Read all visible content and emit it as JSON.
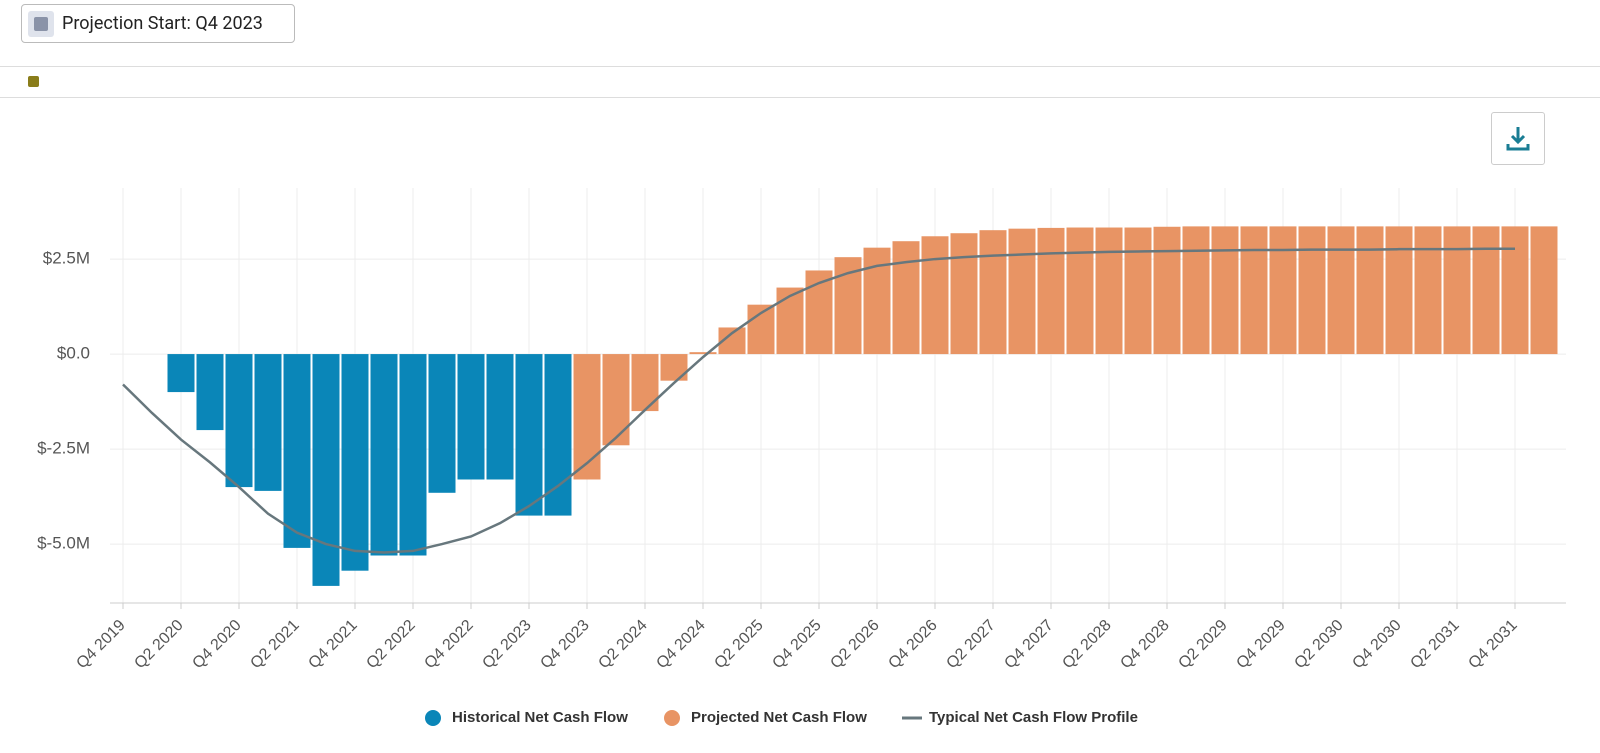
{
  "header": {
    "projection_button": "Projection Start: Q4 2023"
  },
  "chart_data": {
    "type": "bar",
    "categories": [
      "Q4 2019",
      null,
      "Q2 2020",
      null,
      "Q4 2020",
      null,
      "Q2 2021",
      null,
      "Q4 2021",
      null,
      "Q2 2022",
      null,
      "Q4 2022",
      null,
      "Q2 2023",
      null,
      "Q4 2023",
      null,
      "Q2 2024",
      null,
      "Q4 2024",
      null,
      "Q2 2025",
      null,
      "Q4 2025",
      null,
      "Q2 2026",
      null,
      "Q4 2026",
      null,
      "Q2 2027",
      null,
      "Q4 2027",
      null,
      "Q2 2028",
      null,
      "Q4 2028",
      null,
      "Q2 2029",
      null,
      "Q4 2029",
      null,
      "Q2 2030",
      null,
      "Q4 2030",
      null,
      "Q2 2031",
      null,
      "Q4 2031",
      null
    ],
    "series": [
      {
        "name": "Historical Net Cash Flow",
        "color": "#0a86b8",
        "kind": "bar",
        "values": [
          null,
          null,
          -1000000,
          -2000000,
          -3500000,
          -3600000,
          -5100000,
          -6100000,
          -5700000,
          -5300000,
          -5300000,
          -3650000,
          -3300000,
          -3300000,
          -4250000,
          -4250000,
          null,
          null,
          null,
          null,
          null,
          null,
          null,
          null,
          null,
          null,
          null,
          null,
          null,
          null,
          null,
          null,
          null,
          null,
          null,
          null,
          null,
          null,
          null,
          null,
          null,
          null,
          null,
          null,
          null,
          null,
          null,
          null,
          null,
          null
        ]
      },
      {
        "name": "Projected Net Cash Flow",
        "color": "#e89464",
        "kind": "bar",
        "values": [
          null,
          null,
          null,
          null,
          null,
          null,
          null,
          null,
          null,
          null,
          null,
          null,
          null,
          null,
          null,
          null,
          -3300000,
          -2400000,
          -1500000,
          -700000,
          50000,
          700000,
          1300000,
          1750000,
          2200000,
          2550000,
          2800000,
          2970000,
          3100000,
          3180000,
          3260000,
          3300000,
          3320000,
          3330000,
          3330000,
          3330000,
          3350000,
          3360000,
          3360000,
          3360000,
          3360000,
          3360000,
          3360000,
          3360000,
          3360000,
          3360000,
          3360000,
          3360000,
          3360000,
          3360000
        ]
      },
      {
        "name": "Typical Net Cash Flow Profile",
        "color": "#67777d",
        "kind": "line",
        "values": [
          -800000,
          -1550000,
          -2250000,
          -2850000,
          -3500000,
          -4200000,
          -4700000,
          -5000000,
          -5180000,
          -5220000,
          -5180000,
          -5000000,
          -4800000,
          -4450000,
          -4000000,
          -3470000,
          -2870000,
          -2200000,
          -1470000,
          -760000,
          -80000,
          550000,
          1080000,
          1530000,
          1870000,
          2130000,
          2320000,
          2420000,
          2500000,
          2550000,
          2590000,
          2620000,
          2650000,
          2670000,
          2690000,
          2700000,
          2710000,
          2720000,
          2730000,
          2740000,
          2740000,
          2750000,
          2750000,
          2750000,
          2760000,
          2760000,
          2760000,
          2770000,
          2770000,
          null
        ]
      }
    ],
    "ylim": [
      -6550000,
      4370000
    ],
    "yticks": [
      {
        "value": -5000000,
        "label": "$-5.0M"
      },
      {
        "value": -2500000,
        "label": "$-2.5M"
      },
      {
        "value": 0,
        "label": "$0.0"
      },
      {
        "value": 2500000,
        "label": "$2.5M"
      }
    ],
    "grid": true,
    "legend": "bottom"
  }
}
